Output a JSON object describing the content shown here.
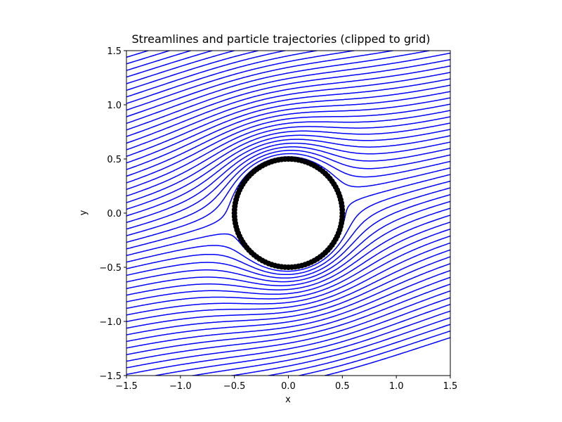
{
  "chart_data": {
    "type": "line",
    "title": "Streamlines and particle trajectories (clipped to grid)",
    "xlabel": "x",
    "ylabel": "y",
    "xlim": [
      -1.5,
      1.5
    ],
    "ylim": [
      -1.5,
      1.5
    ],
    "xticks": [
      -1.5,
      -1.0,
      -0.5,
      0.0,
      0.5,
      1.0,
      1.5
    ],
    "xtick_labels": [
      "−1.5",
      "−1.0",
      "−0.5",
      "0.0",
      "0.5",
      "1.0",
      "1.5"
    ],
    "yticks": [
      -1.5,
      -1.0,
      -0.5,
      0.0,
      0.5,
      1.0,
      1.5
    ],
    "ytick_labels": [
      "−1.5",
      "−1.0",
      "−0.5",
      "0.0",
      "0.5",
      "1.0",
      "1.5"
    ],
    "grid": false,
    "obstacle": {
      "center": [
        0.0,
        0.0
      ],
      "radius": 0.5,
      "color": "#000000"
    },
    "flow": {
      "incoming_angle_deg": 14,
      "x_start": -1.5,
      "y_start_min": -2.1,
      "y_start_max": 1.5,
      "count": 60
    },
    "series": [
      {
        "values": [],
        "color": "#0000ff"
      }
    ]
  }
}
